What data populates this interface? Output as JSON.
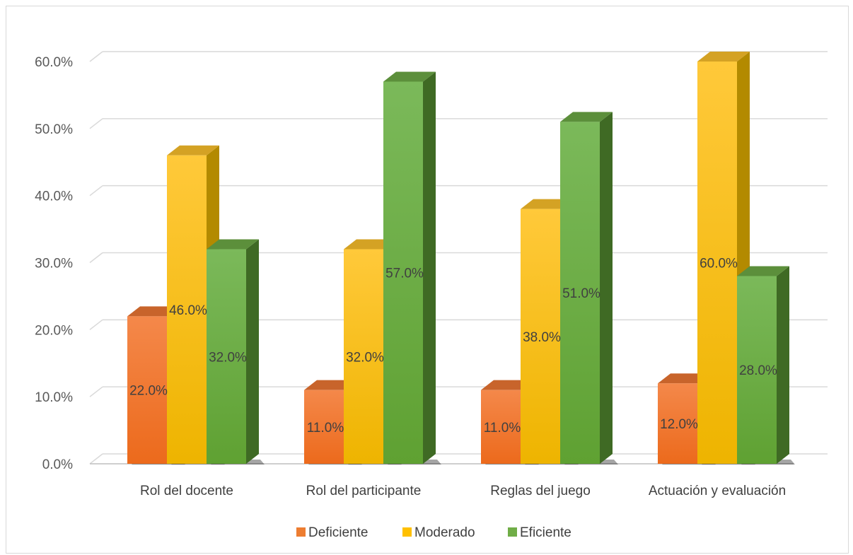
{
  "chart_data": {
    "type": "bar",
    "categories": [
      "Rol del docente",
      "Rol del participante",
      "Reglas del juego",
      "Actuación y evaluación"
    ],
    "series": [
      {
        "name": "Deficiente",
        "values": [
          22.0,
          11.0,
          11.0,
          12.0
        ],
        "color": "#ed7d31"
      },
      {
        "name": "Moderado",
        "values": [
          46.0,
          32.0,
          38.0,
          60.0
        ],
        "color": "#ffc000"
      },
      {
        "name": "Eficiente",
        "values": [
          32.0,
          57.0,
          51.0,
          28.0
        ],
        "color": "#70ad47"
      }
    ],
    "data_labels": [
      [
        "22.0%",
        "11.0%",
        "11.0%",
        "12.0%"
      ],
      [
        "46.0%",
        "32.0%",
        "38.0%",
        "60.0%"
      ],
      [
        "32.0%",
        "57.0%",
        "51.0%",
        "28.0%"
      ]
    ],
    "yticks": [
      "0.0%",
      "10.0%",
      "20.0%",
      "30.0%",
      "40.0%",
      "50.0%",
      "60.0%"
    ],
    "ylim": [
      0,
      60
    ],
    "grid": true,
    "legend": "bottom",
    "style": "3d-column"
  }
}
